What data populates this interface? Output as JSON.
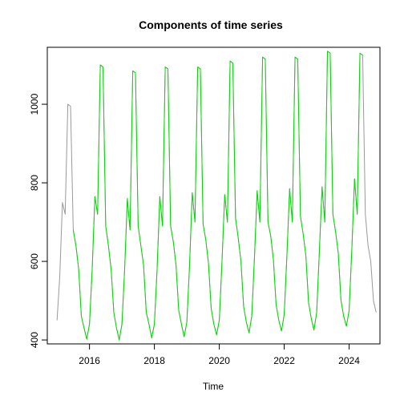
{
  "chart_data": {
    "type": "line",
    "title": "Components of time series",
    "xlabel": "Time",
    "ylabel": "",
    "xlim": [
      2014.7,
      2024.95
    ],
    "ylim": [
      390,
      1145
    ],
    "x_ticks": [
      2016,
      2018,
      2020,
      2022,
      2024
    ],
    "y_ticks": [
      400,
      600,
      800,
      1000
    ],
    "grid": false,
    "series": [
      {
        "role": "observed",
        "color": "#999999",
        "start": 2015.0,
        "step": 0.08333333,
        "values": [
          450,
          560,
          750,
          720,
          1000,
          995,
          680,
          640,
          580,
          460,
          430,
          402,
          440,
          580,
          765,
          720,
          1100,
          1095,
          690,
          640,
          580,
          470,
          430,
          400,
          440,
          580,
          760,
          680,
          1085,
          1080,
          690,
          640,
          590,
          470,
          440,
          405,
          440,
          580,
          765,
          690,
          1095,
          1090,
          690,
          650,
          590,
          475,
          440,
          408,
          445,
          590,
          775,
          700,
          1095,
          1090,
          695,
          655,
          595,
          480,
          440,
          413,
          450,
          600,
          770,
          700,
          1110,
          1105,
          710,
          660,
          600,
          485,
          445,
          418,
          460,
          610,
          780,
          700,
          1120,
          1115,
          700,
          665,
          605,
          490,
          450,
          423,
          465,
          615,
          785,
          700,
          1120,
          1115,
          715,
          670,
          615,
          495,
          455,
          425,
          470,
          625,
          790,
          700,
          1135,
          1130,
          720,
          675,
          620,
          500,
          460,
          435,
          475,
          630,
          810,
          720,
          1130,
          1125,
          720,
          640,
          600,
          500,
          470
        ]
      },
      {
        "role": "seasonally-adjusted",
        "color": "#00dd00",
        "start": 2015.5,
        "step": 0.08333333,
        "values": [
          680,
          640,
          580,
          460,
          430,
          402,
          440,
          580,
          765,
          720,
          1100,
          1095,
          690,
          640,
          580,
          470,
          430,
          400,
          440,
          580,
          760,
          680,
          1085,
          1080,
          690,
          640,
          590,
          470,
          440,
          405,
          440,
          580,
          765,
          690,
          1095,
          1090,
          690,
          650,
          590,
          475,
          440,
          408,
          445,
          590,
          775,
          700,
          1095,
          1090,
          695,
          655,
          595,
          480,
          440,
          413,
          450,
          600,
          770,
          700,
          1110,
          1105,
          710,
          660,
          600,
          485,
          445,
          418,
          460,
          610,
          780,
          700,
          1120,
          1115,
          700,
          665,
          605,
          490,
          450,
          423,
          465,
          615,
          785,
          700,
          1120,
          1115,
          715,
          670,
          615,
          495,
          455,
          425,
          470,
          625,
          790,
          700,
          1135,
          1130,
          720,
          675,
          620,
          500,
          460,
          435,
          475,
          630,
          810,
          720,
          1130,
          1125
        ]
      }
    ]
  }
}
